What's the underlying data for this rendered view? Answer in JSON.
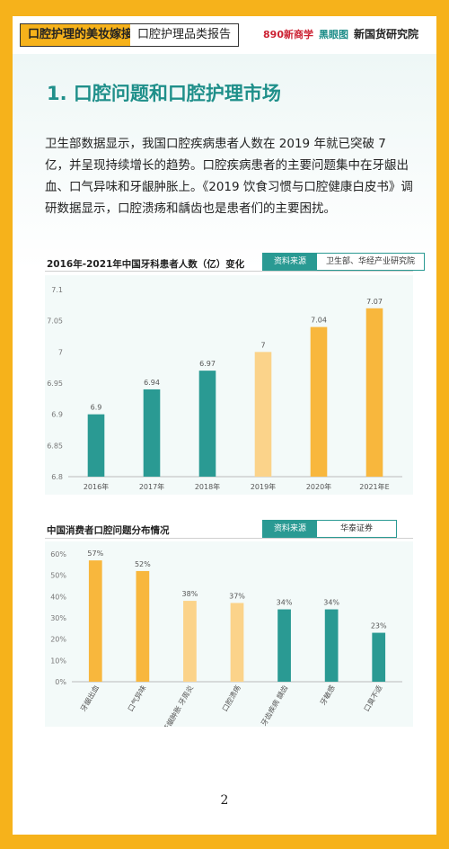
{
  "header": {
    "tag_primary": "口腔护理的美妆嫁接",
    "tag_secondary": "口腔护理品类报告",
    "logo_a": "890新商学",
    "logo_b": "黑眼图",
    "logo_c": "新国货研究院"
  },
  "section": {
    "title": "1. 口腔问题和口腔护理市场",
    "paragraph": "卫生部数据显示，我国口腔疾病患者人数在 2019 年就已突破 7 亿，并呈现持续增长的趋势。口腔疾病患者的主要问题集中在牙龈出血、口气异味和牙龈肿胀上。《2019 饮食习惯与口腔健康白皮书》调研数据显示，口腔溃疡和龋齿也是患者们的主要困扰。"
  },
  "source_label": "资料来源",
  "colors": {
    "teal": "#2a9a93",
    "orange": "#f8b73d",
    "light_orange": "#fbd38a",
    "grid": "#e6e6e6"
  },
  "chart_data": [
    {
      "type": "bar",
      "title": "2016年-2021年中国牙科患者人数（亿）变化",
      "source": "卫生部、华经产业研究院",
      "categories": [
        "2016年",
        "2017年",
        "2018年",
        "2019年",
        "2020年",
        "2021年E"
      ],
      "values": [
        6.9,
        6.94,
        6.97,
        7,
        7.04,
        7.07
      ],
      "value_labels": [
        "6.9",
        "6.94",
        "6.97",
        "7",
        "7.04",
        "7.07"
      ],
      "bar_colors": [
        "#2a9a93",
        "#2a9a93",
        "#2a9a93",
        "#fbd38a",
        "#f8b73d",
        "#f8b73d"
      ],
      "ylim": [
        6.8,
        7.1
      ],
      "yticks": [
        "6.8",
        "6.85",
        "6.9",
        "6.95",
        "7",
        "7.05",
        "7.1"
      ],
      "grid": false
    },
    {
      "type": "bar",
      "title": "中国消费者口腔问题分布情况",
      "source": "华泰证券",
      "categories": [
        "牙龈出血",
        "口气异味",
        "牙龈肿胀 牙周炎",
        "口腔溃疡",
        "牙齿疾病 龋齿",
        "牙敏感",
        "口臭不适"
      ],
      "values": [
        57,
        52,
        38,
        37,
        34,
        34,
        23
      ],
      "value_labels": [
        "57%",
        "52%",
        "38%",
        "37%",
        "34%",
        "34%",
        "23%"
      ],
      "bar_colors": [
        "#f8b73d",
        "#f8b73d",
        "#fbd38a",
        "#fbd38a",
        "#2a9a93",
        "#2a9a93",
        "#2a9a93"
      ],
      "ylim": [
        0,
        60
      ],
      "yticks": [
        "0%",
        "10%",
        "20%",
        "30%",
        "40%",
        "50%",
        "60%"
      ],
      "grid": false
    }
  ],
  "page_number": "2"
}
